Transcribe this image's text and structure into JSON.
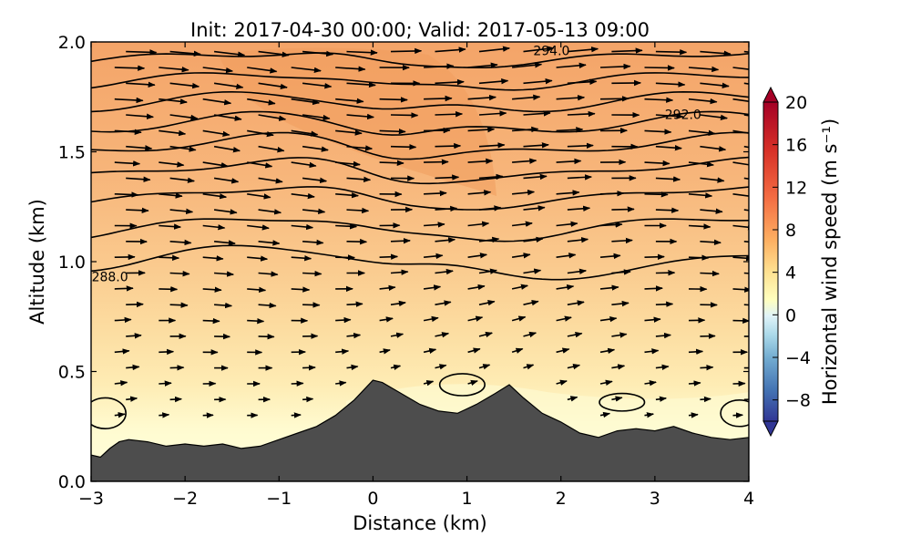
{
  "chart_data": {
    "type": "heatmap",
    "title": "Init: 2017-04-30 00:00; Valid: 2017-05-13 09:00",
    "xlabel": "Distance (km)",
    "ylabel": "Altitude (km)",
    "xlim": [
      -3,
      4
    ],
    "ylim": [
      0,
      2
    ],
    "x_ticks": [
      "−3",
      "−2",
      "−1",
      "0",
      "1",
      "2",
      "3",
      "4"
    ],
    "y_ticks": [
      "0.0",
      "0.5",
      "1.0",
      "1.5",
      "2.0"
    ],
    "colorbar": {
      "label": "Horizontal wind speed (m s⁻¹)",
      "range": [
        -10,
        20
      ],
      "ticks": [
        "−8",
        "−4",
        "0",
        "4",
        "8",
        "12",
        "16",
        "20"
      ],
      "colormap": "RdYlBu_r",
      "extend": "both"
    },
    "terrain": {
      "x": [
        -3.0,
        -2.9,
        -2.8,
        -2.7,
        -2.6,
        -2.4,
        -2.2,
        -2.0,
        -1.8,
        -1.6,
        -1.4,
        -1.2,
        -1.0,
        -0.8,
        -0.6,
        -0.4,
        -0.2,
        0.0,
        0.1,
        0.3,
        0.5,
        0.7,
        0.9,
        1.1,
        1.3,
        1.45,
        1.6,
        1.8,
        2.0,
        2.2,
        2.4,
        2.6,
        2.8,
        3.0,
        3.2,
        3.4,
        3.6,
        3.8,
        4.0
      ],
      "y": [
        0.12,
        0.11,
        0.15,
        0.18,
        0.19,
        0.18,
        0.16,
        0.17,
        0.16,
        0.17,
        0.15,
        0.16,
        0.19,
        0.22,
        0.25,
        0.3,
        0.37,
        0.46,
        0.45,
        0.4,
        0.35,
        0.32,
        0.31,
        0.35,
        0.4,
        0.44,
        0.38,
        0.31,
        0.27,
        0.22,
        0.2,
        0.23,
        0.24,
        0.23,
        0.25,
        0.22,
        0.2,
        0.19,
        0.2
      ]
    },
    "contour_labels": [
      {
        "text": "294.0",
        "x": 1.9,
        "y": 1.94
      },
      {
        "text": "292.0",
        "x": 3.3,
        "y": 1.65
      },
      {
        "text": "288.0",
        "x": -2.8,
        "y": 0.91
      }
    ]
  }
}
